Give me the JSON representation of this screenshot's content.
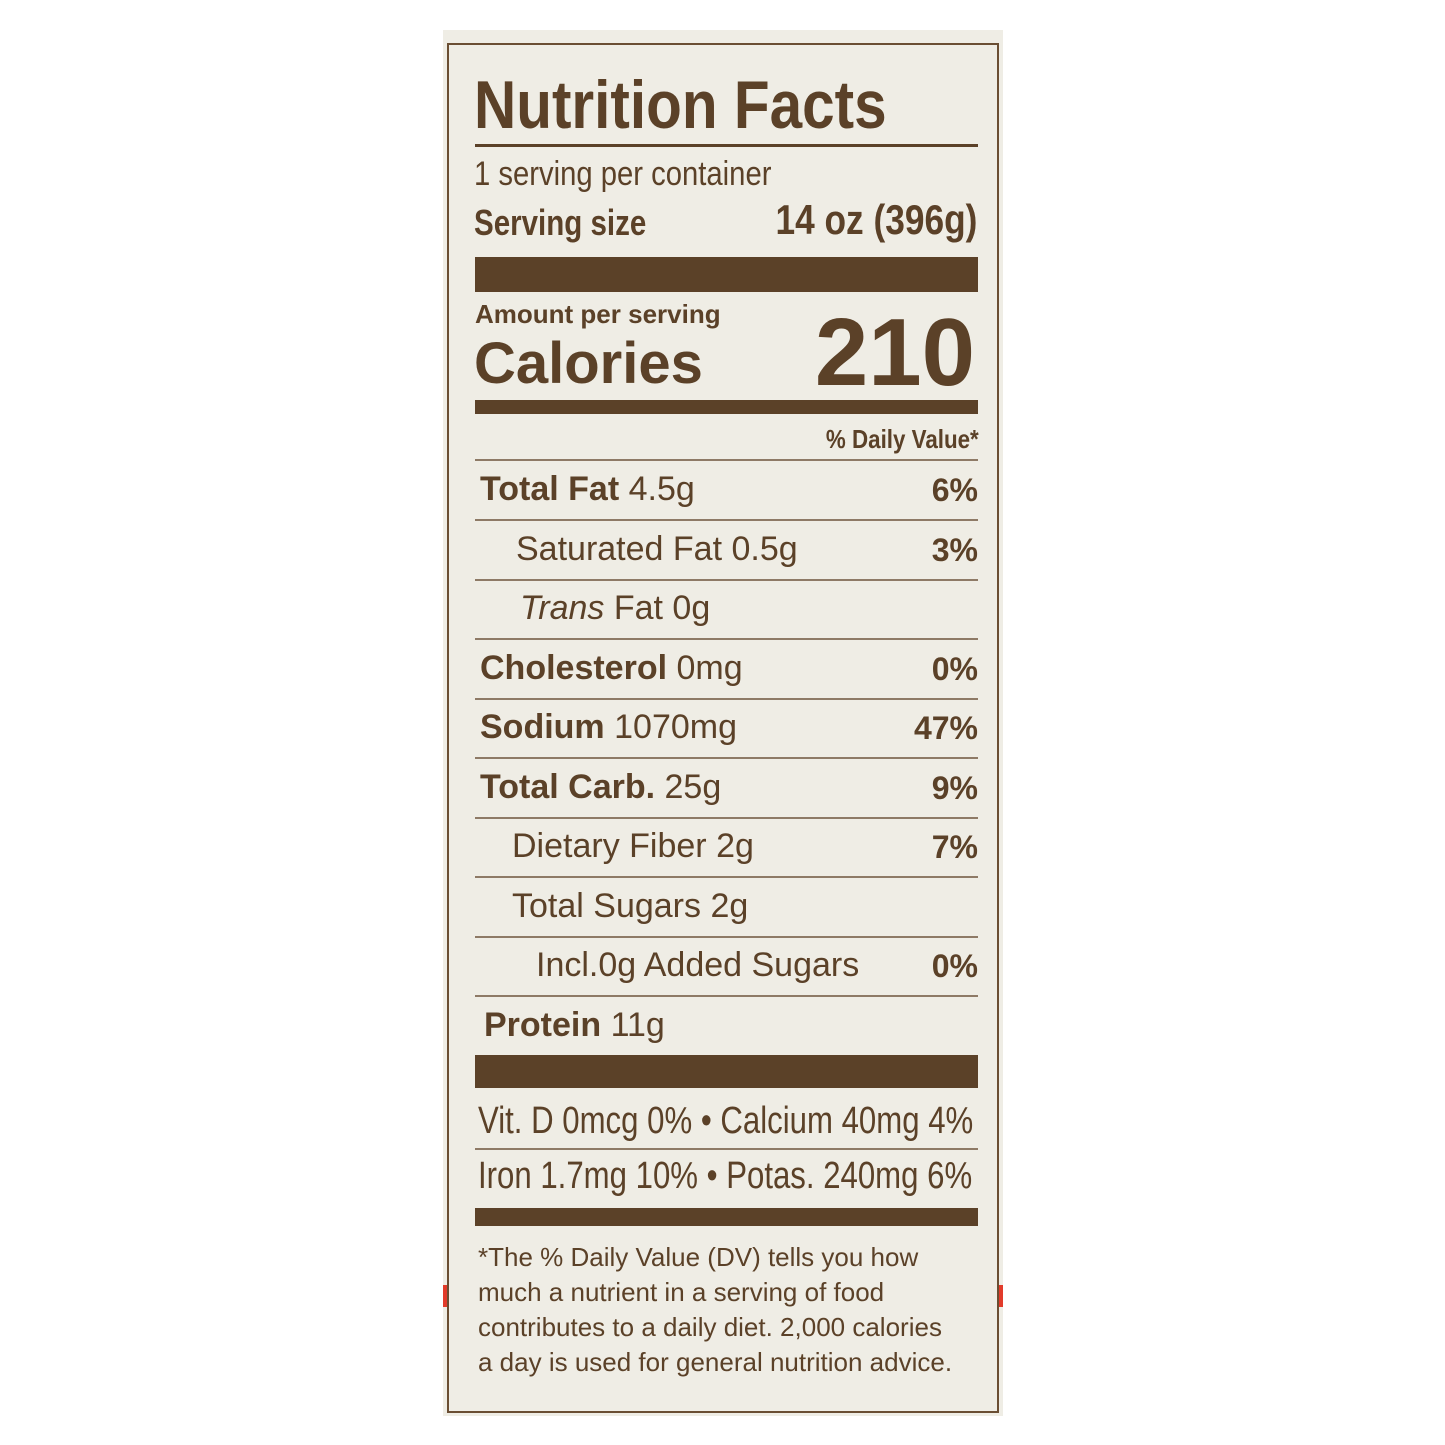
{
  "title": "Nutrition Facts",
  "servings_per_container": "1 serving per container",
  "serving_size_label": "Serving size",
  "serving_size_value": "14 oz (396g)",
  "amount_per_serving": "Amount per serving",
  "calories_label": "Calories",
  "calories_value": "210",
  "dv_header": "% Daily Value*",
  "nutrients": [
    {
      "name": "Total Fat",
      "amount": "4.5g",
      "dv": "6%"
    },
    {
      "name": "Saturated Fat",
      "amount": "0.5g",
      "dv": "3%"
    },
    {
      "name": "Trans",
      "name_suffix": "Fat",
      "amount": "0g",
      "dv": ""
    },
    {
      "name": "Cholesterol",
      "amount": "0mg",
      "dv": "0%"
    },
    {
      "name": "Sodium",
      "amount": "1070mg",
      "dv": "47%"
    },
    {
      "name": "Total Carb.",
      "amount": "25g",
      "dv": "9%"
    },
    {
      "name": "Dietary Fiber",
      "amount": "2g",
      "dv": "7%"
    },
    {
      "name": "Total Sugars",
      "amount": "2g",
      "dv": ""
    },
    {
      "name": "Incl.0g Added Sugars",
      "amount": "",
      "dv": "0%"
    },
    {
      "name": "Protein",
      "amount": "11g",
      "dv": ""
    }
  ],
  "vitamins": [
    "Vit. D 0mcg 0% • Calcium 40mg 4%",
    "Iron 1.7mg 10% • Potas. 240mg 6%"
  ],
  "footnote": [
    "*The % Daily Value (DV) tells you how",
    "much a nutrient in a serving of food",
    "contributes to a daily diet. 2,000 calories",
    "a day is used for general nutrition advice."
  ],
  "colors": {
    "ink": "#5b4128",
    "background": "#efede5",
    "accent_red": "#e23b2a"
  }
}
